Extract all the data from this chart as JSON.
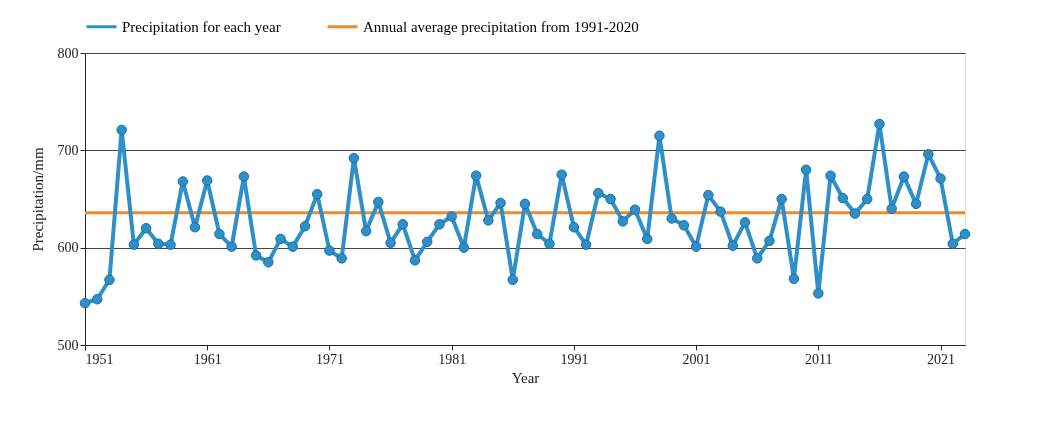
{
  "chart_data": {
    "type": "line",
    "xlabel": "Year",
    "ylabel": "Precipitation/mm",
    "x": [
      1951,
      1952,
      1953,
      1954,
      1955,
      1956,
      1957,
      1958,
      1959,
      1960,
      1961,
      1962,
      1963,
      1964,
      1965,
      1966,
      1967,
      1968,
      1969,
      1970,
      1971,
      1972,
      1973,
      1974,
      1975,
      1976,
      1977,
      1978,
      1979,
      1980,
      1981,
      1982,
      1983,
      1984,
      1985,
      1986,
      1987,
      1988,
      1989,
      1990,
      1991,
      1992,
      1993,
      1994,
      1995,
      1996,
      1997,
      1998,
      1999,
      2000,
      2001,
      2002,
      2003,
      2004,
      2005,
      2006,
      2007,
      2008,
      2009,
      2010,
      2011,
      2012,
      2013,
      2014,
      2015,
      2016,
      2017,
      2018,
      2019,
      2020,
      2021,
      2022,
      2023
    ],
    "series": [
      {
        "name": "Precipitation for each year",
        "color": "#2e8fc9",
        "values": [
          543,
          547,
          567,
          721,
          603,
          620,
          604,
          603,
          668,
          621,
          669,
          614,
          601,
          673,
          592,
          585,
          609,
          601,
          622,
          655,
          597,
          589,
          692,
          617,
          647,
          605,
          624,
          587,
          606,
          624,
          632,
          600,
          674,
          628,
          646,
          567,
          645,
          614,
          604,
          675,
          621,
          603,
          656,
          650,
          627,
          639,
          609,
          715,
          630,
          623,
          601,
          654,
          637,
          602,
          626,
          589,
          607,
          650,
          568,
          680,
          553,
          674,
          651,
          635,
          650,
          727,
          640,
          673,
          645,
          696,
          671,
          604,
          614
        ]
      }
    ],
    "ref_lines": [
      {
        "axis": "y",
        "value": 636,
        "label": "Annual average precipitation from 1991-2020",
        "color": "#f0892a"
      }
    ],
    "xlim": [
      1951,
      2023
    ],
    "xticks": [
      1951,
      1961,
      1971,
      1981,
      1991,
      2001,
      2011,
      2021
    ],
    "ylim": [
      500,
      800
    ],
    "yticks": [
      500,
      600,
      700,
      800
    ],
    "grid": "y",
    "legend": "top",
    "marker": "circle",
    "line_style": "solid"
  }
}
